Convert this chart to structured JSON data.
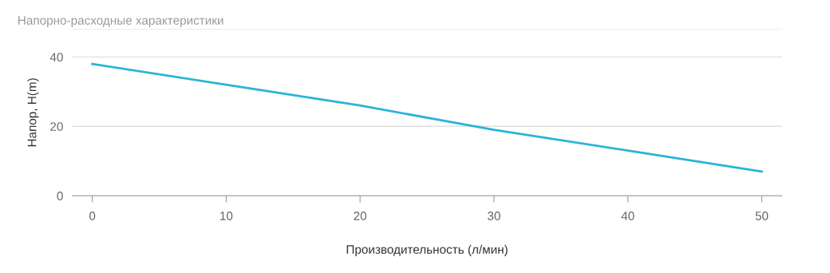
{
  "chart_data": {
    "type": "line",
    "title": "Напорно-расходные характеристики",
    "xlabel": "Производительность (л/мин)",
    "ylabel": "Напор, H(m)",
    "x": [
      0,
      10,
      20,
      30,
      40,
      50
    ],
    "series": [
      {
        "color": "#2ab4d9",
        "values": [
          38,
          32,
          26,
          19,
          13,
          7
        ]
      }
    ],
    "xlim": [
      -1.5,
      51.5
    ],
    "xticks": [
      0,
      10,
      20,
      30,
      40,
      50
    ],
    "ylim": [
      0,
      48
    ],
    "yticks": [
      0,
      20,
      40
    ],
    "grid": "y",
    "legend": false,
    "marker": "none",
    "line_style": "solid"
  }
}
